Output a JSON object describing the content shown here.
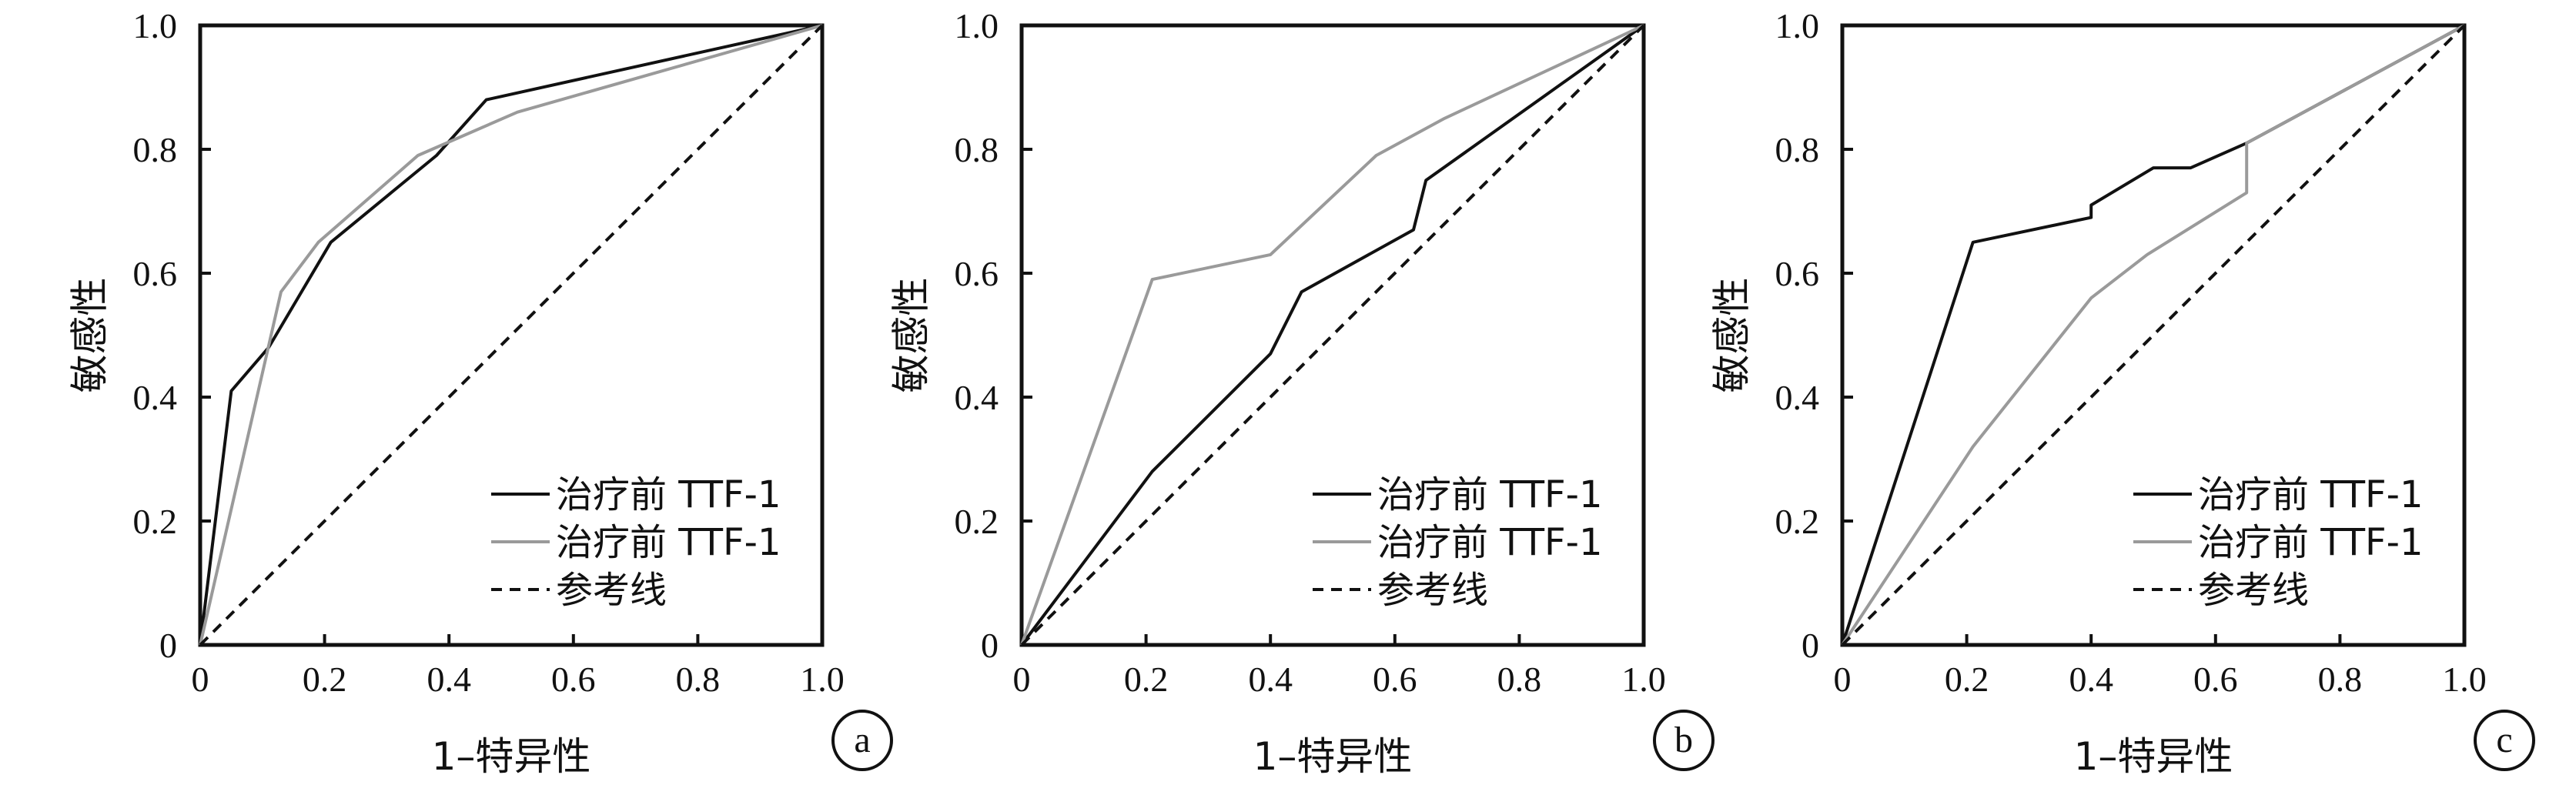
{
  "chart_data": [
    {
      "type": "line",
      "panel_label": "a",
      "xlabel": "1–特异性",
      "ylabel": "敏感性",
      "xlim": [
        0,
        1
      ],
      "ylim": [
        0,
        1
      ],
      "x_ticks": [
        "0",
        "0.2",
        "0.4",
        "0.6",
        "0.8",
        "1.0"
      ],
      "y_ticks": [
        "0",
        "0.2",
        "0.4",
        "0.6",
        "0.8",
        "1.0"
      ],
      "legend_position": "bottom-right",
      "series": [
        {
          "name": "治疗前 TTF-1",
          "color": "#111111",
          "dash": "solid",
          "points": [
            [
              0,
              0
            ],
            [
              0.05,
              0.41
            ],
            [
              0.11,
              0.48
            ],
            [
              0.21,
              0.65
            ],
            [
              0.38,
              0.79
            ],
            [
              0.46,
              0.88
            ],
            [
              1.0,
              1.0
            ]
          ]
        },
        {
          "name": "治疗前 TTF-1",
          "color": "#9a9a9a",
          "dash": "solid",
          "points": [
            [
              0,
              0
            ],
            [
              0.13,
              0.57
            ],
            [
              0.19,
              0.65
            ],
            [
              0.35,
              0.79
            ],
            [
              0.51,
              0.86
            ],
            [
              1.0,
              1.0
            ]
          ]
        },
        {
          "name": "参考线",
          "color": "#111111",
          "dash": "dashed",
          "points": [
            [
              0,
              0
            ],
            [
              1.0,
              1.0
            ]
          ]
        }
      ]
    },
    {
      "type": "line",
      "panel_label": "b",
      "xlabel": "1–特异性",
      "ylabel": "敏感性",
      "xlim": [
        0,
        1
      ],
      "ylim": [
        0,
        1
      ],
      "x_ticks": [
        "0",
        "0.2",
        "0.4",
        "0.6",
        "0.8",
        "1.0"
      ],
      "y_ticks": [
        "0",
        "0.2",
        "0.4",
        "0.6",
        "0.8",
        "1.0"
      ],
      "legend_position": "bottom-right",
      "series": [
        {
          "name": "治疗前 TTF-1",
          "color": "#111111",
          "dash": "solid",
          "points": [
            [
              0,
              0
            ],
            [
              0.21,
              0.28
            ],
            [
              0.4,
              0.47
            ],
            [
              0.45,
              0.57
            ],
            [
              0.63,
              0.67
            ],
            [
              0.65,
              0.75
            ],
            [
              1.0,
              1.0
            ]
          ]
        },
        {
          "name": "治疗前 TTF-1",
          "color": "#9a9a9a",
          "dash": "solid",
          "points": [
            [
              0,
              0
            ],
            [
              0.21,
              0.59
            ],
            [
              0.4,
              0.63
            ],
            [
              0.57,
              0.79
            ],
            [
              0.68,
              0.85
            ],
            [
              1.0,
              1.0
            ]
          ]
        },
        {
          "name": "参考线",
          "color": "#111111",
          "dash": "dashed",
          "points": [
            [
              0,
              0
            ],
            [
              1.0,
              1.0
            ]
          ]
        }
      ]
    },
    {
      "type": "line",
      "panel_label": "c",
      "xlabel": "1–特异性",
      "ylabel": "敏感性",
      "xlim": [
        0,
        1
      ],
      "ylim": [
        0,
        1
      ],
      "x_ticks": [
        "0",
        "0.2",
        "0.4",
        "0.6",
        "0.8",
        "1.0"
      ],
      "y_ticks": [
        "0",
        "0.2",
        "0.4",
        "0.6",
        "0.8",
        "1.0"
      ],
      "legend_position": "bottom-right",
      "series": [
        {
          "name": "治疗前 TTF-1",
          "color": "#111111",
          "dash": "solid",
          "points": [
            [
              0,
              0
            ],
            [
              0.21,
              0.65
            ],
            [
              0.4,
              0.69
            ],
            [
              0.4,
              0.71
            ],
            [
              0.5,
              0.77
            ],
            [
              0.56,
              0.77
            ],
            [
              0.65,
              0.81
            ],
            [
              1.0,
              1.0
            ]
          ]
        },
        {
          "name": "治疗前 TTF-1",
          "color": "#9a9a9a",
          "dash": "solid",
          "points": [
            [
              0,
              0
            ],
            [
              0.21,
              0.32
            ],
            [
              0.4,
              0.56
            ],
            [
              0.49,
              0.63
            ],
            [
              0.65,
              0.73
            ],
            [
              0.65,
              0.81
            ],
            [
              1.0,
              1.0
            ]
          ]
        },
        {
          "name": "参考线",
          "color": "#111111",
          "dash": "dashed",
          "points": [
            [
              0,
              0
            ],
            [
              1.0,
              1.0
            ]
          ]
        }
      ]
    }
  ]
}
